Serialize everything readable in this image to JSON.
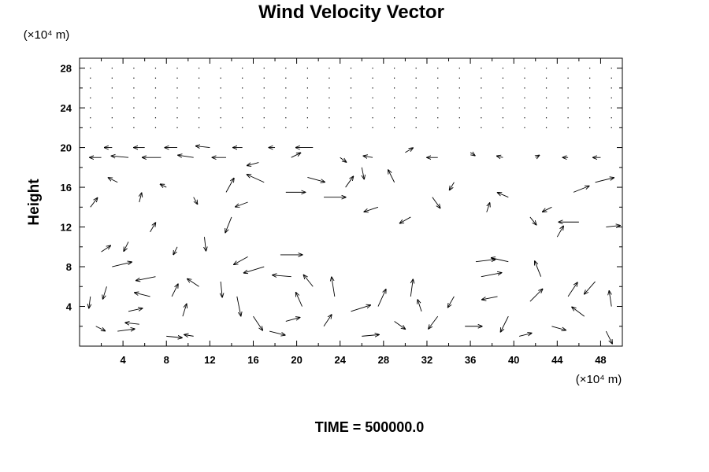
{
  "chart_data": {
    "type": "vector-field",
    "title": "Wind Velocity Vector",
    "ylabel": "Height",
    "xlabel": "",
    "x_unit": "(×10⁴ m)",
    "y_unit": "(×10⁴ m)",
    "xlim": [
      0,
      50
    ],
    "ylim": [
      0,
      29
    ],
    "x_ticks": [
      4,
      8,
      12,
      16,
      20,
      24,
      28,
      32,
      36,
      40,
      44,
      48
    ],
    "y_ticks": [
      4,
      8,
      12,
      16,
      20,
      24,
      28
    ],
    "grid": false,
    "footer": "TIME = 500000.0",
    "vectors": [
      {
        "x": 1.5,
        "y": 2.0,
        "u": 1.2,
        "v": -0.6
      },
      {
        "x": 3.5,
        "y": 1.5,
        "u": 2.2,
        "v": 0.3
      },
      {
        "x": 4.5,
        "y": 3.5,
        "u": 1.8,
        "v": 0.4
      },
      {
        "x": 5.5,
        "y": 2.2,
        "u": -1.8,
        "v": 0.2
      },
      {
        "x": 6.5,
        "y": 5.0,
        "u": -2.0,
        "v": 0.5
      },
      {
        "x": 7.0,
        "y": 7.0,
        "u": -2.5,
        "v": -0.5
      },
      {
        "x": 2.5,
        "y": 6.0,
        "u": -0.5,
        "v": -1.6
      },
      {
        "x": 1.0,
        "y": 5.0,
        "u": -0.2,
        "v": -1.5
      },
      {
        "x": 3.0,
        "y": 8.0,
        "u": 2.5,
        "v": 0.6
      },
      {
        "x": 8.5,
        "y": 5.0,
        "u": 0.8,
        "v": 1.6
      },
      {
        "x": 9.5,
        "y": 3.0,
        "u": 0.5,
        "v": 1.6
      },
      {
        "x": 8.0,
        "y": 1.0,
        "u": 2.0,
        "v": -0.2
      },
      {
        "x": 10.5,
        "y": 1.0,
        "u": -1.2,
        "v": 0.2
      },
      {
        "x": 11.0,
        "y": 6.0,
        "u": -1.5,
        "v": 1.0
      },
      {
        "x": 13.0,
        "y": 6.5,
        "u": 0.2,
        "v": -2.0
      },
      {
        "x": 14.5,
        "y": 5.0,
        "u": 0.5,
        "v": -2.5
      },
      {
        "x": 16.0,
        "y": 3.0,
        "u": 1.2,
        "v": -1.8
      },
      {
        "x": 17.5,
        "y": 1.5,
        "u": 2.0,
        "v": -0.5
      },
      {
        "x": 19.0,
        "y": 2.5,
        "u": 1.8,
        "v": 0.5
      },
      {
        "x": 20.5,
        "y": 4.0,
        "u": -0.8,
        "v": 1.8
      },
      {
        "x": 21.5,
        "y": 6.0,
        "u": -1.2,
        "v": 1.5
      },
      {
        "x": 19.5,
        "y": 7.0,
        "u": -2.4,
        "v": 0.2
      },
      {
        "x": 17.0,
        "y": 8.0,
        "u": -2.6,
        "v": -0.8
      },
      {
        "x": 15.5,
        "y": 9.0,
        "u": -1.8,
        "v": -1.0
      },
      {
        "x": 18.5,
        "y": 9.2,
        "u": 2.8,
        "v": 0.0
      },
      {
        "x": 22.5,
        "y": 2.0,
        "u": 1.0,
        "v": 1.5
      },
      {
        "x": 23.5,
        "y": 5.0,
        "u": -0.4,
        "v": 2.5
      },
      {
        "x": 25.0,
        "y": 3.5,
        "u": 2.5,
        "v": 0.8
      },
      {
        "x": 26.0,
        "y": 1.0,
        "u": 2.2,
        "v": 0.2
      },
      {
        "x": 27.5,
        "y": 4.0,
        "u": 1.0,
        "v": 2.2
      },
      {
        "x": 29.0,
        "y": 2.5,
        "u": 1.4,
        "v": -1.0
      },
      {
        "x": 30.5,
        "y": 5.0,
        "u": 0.3,
        "v": 2.2
      },
      {
        "x": 31.5,
        "y": 3.5,
        "u": -0.5,
        "v": 1.5
      },
      {
        "x": 33.0,
        "y": 3.0,
        "u": -1.2,
        "v": -1.6
      },
      {
        "x": 34.5,
        "y": 5.0,
        "u": -0.8,
        "v": -1.4
      },
      {
        "x": 35.5,
        "y": 2.0,
        "u": 2.2,
        "v": 0.0
      },
      {
        "x": 37.0,
        "y": 7.0,
        "u": 2.6,
        "v": 0.5
      },
      {
        "x": 38.5,
        "y": 5.0,
        "u": -2.0,
        "v": -0.4
      },
      {
        "x": 39.5,
        "y": 3.0,
        "u": -1.0,
        "v": -2.0
      },
      {
        "x": 40.5,
        "y": 1.0,
        "u": 1.6,
        "v": 0.4
      },
      {
        "x": 41.5,
        "y": 4.5,
        "u": 1.6,
        "v": 1.6
      },
      {
        "x": 42.5,
        "y": 7.0,
        "u": -0.8,
        "v": 2.0
      },
      {
        "x": 43.5,
        "y": 2.0,
        "u": 1.8,
        "v": -0.5
      },
      {
        "x": 45.0,
        "y": 5.0,
        "u": 1.2,
        "v": 1.8
      },
      {
        "x": 46.5,
        "y": 3.0,
        "u": -1.6,
        "v": 1.2
      },
      {
        "x": 47.5,
        "y": 6.5,
        "u": -1.4,
        "v": -1.6
      },
      {
        "x": 48.5,
        "y": 1.5,
        "u": 0.8,
        "v": -1.6
      },
      {
        "x": 49.0,
        "y": 4.0,
        "u": -0.3,
        "v": 2.0
      },
      {
        "x": 36.5,
        "y": 8.5,
        "u": 2.5,
        "v": 0.3
      },
      {
        "x": 39.5,
        "y": 8.5,
        "u": -2.2,
        "v": 0.5
      },
      {
        "x": 2.0,
        "y": 9.5,
        "u": 1.2,
        "v": 0.8
      },
      {
        "x": 4.5,
        "y": 10.5,
        "u": -0.6,
        "v": -1.2
      },
      {
        "x": 6.5,
        "y": 11.5,
        "u": 0.7,
        "v": 1.2
      },
      {
        "x": 9.0,
        "y": 10.0,
        "u": -0.5,
        "v": -1.0
      },
      {
        "x": 11.5,
        "y": 11.0,
        "u": 0.2,
        "v": -1.8
      },
      {
        "x": 14.0,
        "y": 13.0,
        "u": -0.8,
        "v": -2.0
      },
      {
        "x": 13.5,
        "y": 15.5,
        "u": 1.0,
        "v": 1.8
      },
      {
        "x": 15.5,
        "y": 14.5,
        "u": -1.6,
        "v": -0.6
      },
      {
        "x": 17.0,
        "y": 16.5,
        "u": -2.2,
        "v": 1.0
      },
      {
        "x": 19.0,
        "y": 15.5,
        "u": 2.5,
        "v": 0.0
      },
      {
        "x": 21.0,
        "y": 17.0,
        "u": 2.2,
        "v": -0.6
      },
      {
        "x": 22.5,
        "y": 15.0,
        "u": 2.8,
        "v": 0.0
      },
      {
        "x": 24.5,
        "y": 16.0,
        "u": 1.0,
        "v": 1.4
      },
      {
        "x": 26.0,
        "y": 18.0,
        "u": 0.3,
        "v": -1.5
      },
      {
        "x": 27.5,
        "y": 14.0,
        "u": -1.8,
        "v": -0.6
      },
      {
        "x": 29.0,
        "y": 16.5,
        "u": -0.8,
        "v": 1.6
      },
      {
        "x": 30.5,
        "y": 13.0,
        "u": -1.4,
        "v": -0.8
      },
      {
        "x": 32.5,
        "y": 15.0,
        "u": 1.0,
        "v": -1.4
      },
      {
        "x": 34.5,
        "y": 16.5,
        "u": -0.6,
        "v": -1.0
      },
      {
        "x": 37.5,
        "y": 13.5,
        "u": 0.4,
        "v": 1.2
      },
      {
        "x": 39.5,
        "y": 15.0,
        "u": -1.4,
        "v": 0.6
      },
      {
        "x": 41.5,
        "y": 13.0,
        "u": 0.8,
        "v": -1.0
      },
      {
        "x": 43.5,
        "y": 14.0,
        "u": -1.2,
        "v": -0.6
      },
      {
        "x": 45.5,
        "y": 15.5,
        "u": 2.0,
        "v": 0.8
      },
      {
        "x": 47.5,
        "y": 16.5,
        "u": 2.4,
        "v": 0.6
      },
      {
        "x": 46.0,
        "y": 12.5,
        "u": -2.6,
        "v": 0.0
      },
      {
        "x": 44.0,
        "y": 11.0,
        "u": 0.8,
        "v": 1.4
      },
      {
        "x": 48.5,
        "y": 12.0,
        "u": 1.8,
        "v": 0.2
      },
      {
        "x": 1.0,
        "y": 14.0,
        "u": 0.9,
        "v": 1.2
      },
      {
        "x": 3.5,
        "y": 16.5,
        "u": -1.2,
        "v": 0.6
      },
      {
        "x": 5.5,
        "y": 14.5,
        "u": 0.3,
        "v": 1.2
      },
      {
        "x": 8.0,
        "y": 16.0,
        "u": -0.8,
        "v": 0.4
      },
      {
        "x": 10.5,
        "y": 15.0,
        "u": 0.5,
        "v": -0.9
      },
      {
        "x": 2.0,
        "y": 19.0,
        "u": -1.5,
        "v": 0.0
      },
      {
        "x": 4.5,
        "y": 19.0,
        "u": -2.2,
        "v": 0.2
      },
      {
        "x": 7.5,
        "y": 19.0,
        "u": -2.4,
        "v": 0.0
      },
      {
        "x": 10.5,
        "y": 19.0,
        "u": -2.0,
        "v": 0.3
      },
      {
        "x": 13.5,
        "y": 19.0,
        "u": -1.8,
        "v": 0.0
      },
      {
        "x": 16.5,
        "y": 18.5,
        "u": -1.5,
        "v": -0.4
      },
      {
        "x": 19.5,
        "y": 19.0,
        "u": 1.2,
        "v": 0.6
      },
      {
        "x": 21.5,
        "y": 20.0,
        "u": -2.2,
        "v": 0.0
      },
      {
        "x": 24.0,
        "y": 19.0,
        "u": 0.8,
        "v": -0.6
      },
      {
        "x": 27.0,
        "y": 19.0,
        "u": -1.2,
        "v": 0.2
      },
      {
        "x": 30.0,
        "y": 19.5,
        "u": 1.0,
        "v": 0.6
      },
      {
        "x": 33.0,
        "y": 19.0,
        "u": -1.4,
        "v": 0.0
      },
      {
        "x": 36.0,
        "y": 19.5,
        "u": 0.6,
        "v": -0.4
      },
      {
        "x": 39.0,
        "y": 19.0,
        "u": -0.8,
        "v": 0.2
      },
      {
        "x": 42.0,
        "y": 19.0,
        "u": 0.5,
        "v": 0.3
      },
      {
        "x": 45.0,
        "y": 19.0,
        "u": -0.7,
        "v": 0.0
      },
      {
        "x": 48.0,
        "y": 19.0,
        "u": -1.0,
        "v": 0.0
      },
      {
        "x": 3.0,
        "y": 20.0,
        "u": -1.0,
        "v": 0.0
      },
      {
        "x": 6.0,
        "y": 20.0,
        "u": -1.4,
        "v": 0.0
      },
      {
        "x": 9.0,
        "y": 20.0,
        "u": -1.6,
        "v": 0.0
      },
      {
        "x": 12.0,
        "y": 20.0,
        "u": -1.8,
        "v": 0.2
      },
      {
        "x": 15.0,
        "y": 20.0,
        "u": -1.2,
        "v": 0.0
      },
      {
        "x": 18.0,
        "y": 20.0,
        "u": -0.8,
        "v": 0.0
      }
    ]
  }
}
